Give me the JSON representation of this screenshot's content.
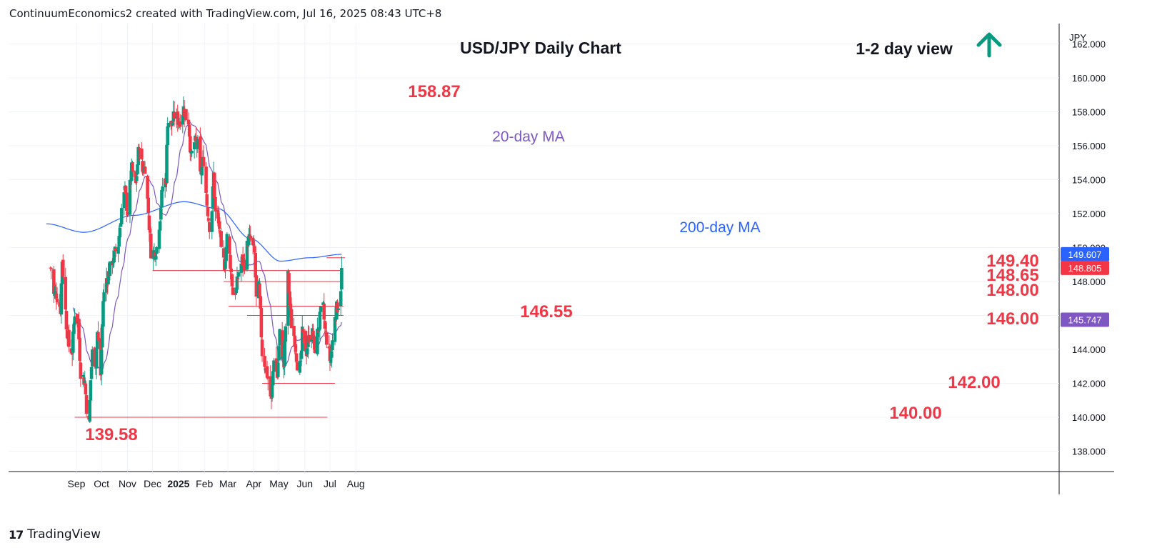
{
  "header": {
    "attribution": "ContinuumEconomics2 created with TradingView.com, Jul 16, 2025 08:43 UTC+8"
  },
  "footer": {
    "brand": "TradingView",
    "brand_mark": "17"
  },
  "chart_data": {
    "type": "candlestick",
    "title": "USD/JPY Daily Chart",
    "subtitle": "1-2 day view",
    "view_direction": "up",
    "currency_label": "JPY",
    "ylim": [
      136.8,
      163.2
    ],
    "y_ticks": [
      138,
      140,
      142,
      144,
      146,
      148,
      150,
      152,
      154,
      156,
      158,
      160,
      162
    ],
    "x_ticks": [
      "Sep",
      "Oct",
      "Nov",
      "Dec",
      "2025",
      "Feb",
      "Mar",
      "Apr",
      "May",
      "Jun",
      "Jul",
      "Aug"
    ],
    "colors": {
      "up": "#089981",
      "down": "#f23645",
      "ma20": "#7e57c2",
      "ma200": "#2962ff",
      "levels": "#f23645",
      "arrow": "#089981"
    },
    "ma_labels": {
      "ma20": "20-day MA",
      "ma200": "200-day MA"
    },
    "last_price": "148.805",
    "last_price_color": "#f23645",
    "ma200_last": "149.607",
    "ma20_last": "145.747",
    "levels": [
      {
        "label": "158.87",
        "value": 158.87
      },
      {
        "label": "149.40",
        "value": 149.4
      },
      {
        "label": "148.65",
        "value": 148.65
      },
      {
        "label": "148.00",
        "value": 148.0
      },
      {
        "label": "146.55",
        "value": 146.55
      },
      {
        "label": "146.00",
        "value": 146.0
      },
      {
        "label": "142.00",
        "value": 142.0
      },
      {
        "label": "140.00",
        "value": 140.0
      },
      {
        "label": "139.58",
        "value": 139.58
      }
    ],
    "anchors": [
      [
        "Aug 5",
        147.2
      ],
      [
        "Aug 8",
        147.3
      ],
      [
        "Aug 13",
        146.4
      ],
      [
        "Aug 15",
        149.3
      ],
      [
        "Aug 20",
        145.5
      ],
      [
        "Aug 23",
        144.2
      ],
      [
        "Aug 27",
        143.9
      ],
      [
        "Aug 30",
        146.2
      ],
      [
        "Sep 3",
        145.6
      ],
      [
        "Sep 6",
        142.7
      ],
      [
        "Sep 11",
        142.1
      ],
      [
        "Sep 13",
        140.6
      ],
      [
        "Sep 16",
        139.6
      ],
      [
        "Sep 18",
        142.2
      ],
      [
        "Sep 20",
        143.8
      ],
      [
        "Sep 24",
        143.2
      ],
      [
        "Sep 26",
        145.0
      ],
      [
        "Sep 30",
        142.5
      ],
      [
        "Oct 3",
        146.9
      ],
      [
        "Oct 7",
        148.2
      ],
      [
        "Oct 10",
        148.6
      ],
      [
        "Oct 15",
        149.4
      ],
      [
        "Oct 21",
        150.2
      ],
      [
        "Oct 25",
        152.3
      ],
      [
        "Oct 29",
        153.3
      ],
      [
        "Nov 1",
        152.1
      ],
      [
        "Nov 6",
        154.6
      ],
      [
        "Nov 11",
        153.7
      ],
      [
        "Nov 15",
        156.2
      ],
      [
        "Nov 19",
        154.5
      ],
      [
        "Nov 22",
        154.8
      ],
      [
        "Nov 26",
        152.1
      ],
      [
        "Nov 29",
        149.8
      ],
      [
        "Dec 3",
        149.7
      ],
      [
        "Dec 6",
        150.0
      ],
      [
        "Dec 10",
        151.9
      ],
      [
        "Dec 13",
        153.6
      ],
      [
        "Dec 17",
        154.1
      ],
      [
        "Dec 19",
        157.5
      ],
      [
        "Dec 24",
        157.2
      ],
      [
        "Dec 27",
        157.8
      ],
      [
        "Jan 2",
        157.4
      ],
      [
        "Jan 7",
        158.2
      ],
      [
        "Jan 10",
        157.7
      ],
      [
        "Jan 13",
        157.5
      ],
      [
        "Jan 16",
        155.3
      ],
      [
        "Jan 20",
        156.2
      ],
      [
        "Jan 24",
        156.0
      ],
      [
        "Jan 27",
        154.2
      ],
      [
        "Jan 31",
        155.2
      ],
      [
        "Feb 4",
        152.6
      ],
      [
        "Feb 7",
        151.3
      ],
      [
        "Feb 10",
        152.3
      ],
      [
        "Feb 12",
        154.3
      ],
      [
        "Feb 14",
        152.0
      ],
      [
        "Feb 19",
        151.2
      ],
      [
        "Feb 21",
        149.6
      ],
      [
        "Feb 25",
        149.0
      ],
      [
        "Feb 28",
        150.6
      ],
      [
        "Mar 4",
        149.1
      ],
      [
        "Mar 7",
        147.3
      ],
      [
        "Mar 11",
        147.5
      ],
      [
        "Mar 14",
        148.6
      ],
      [
        "Mar 18",
        149.2
      ],
      [
        "Mar 21",
        149.1
      ],
      [
        "Mar 25",
        150.4
      ],
      [
        "Mar 28",
        150.5
      ],
      [
        "Apr 2",
        149.6
      ],
      [
        "Apr 4",
        146.9
      ],
      [
        "Apr 7",
        147.6
      ],
      [
        "Apr 9",
        146.0
      ],
      [
        "Apr 11",
        143.8
      ],
      [
        "Apr 15",
        143.0
      ],
      [
        "Apr 18",
        142.3
      ],
      [
        "Apr 22",
        140.9
      ],
      [
        "Apr 25",
        143.6
      ],
      [
        "Apr 29",
        142.4
      ],
      [
        "May 2",
        144.9
      ],
      [
        "May 7",
        143.0
      ],
      [
        "May 9",
        145.4
      ],
      [
        "May 12",
        148.3
      ],
      [
        "May 14",
        146.6
      ],
      [
        "May 16",
        145.5
      ],
      [
        "May 20",
        144.6
      ],
      [
        "May 23",
        143.2
      ],
      [
        "May 27",
        142.9
      ],
      [
        "May 29",
        144.9
      ],
      [
        "Jun 3",
        143.9
      ],
      [
        "Jun 6",
        144.8
      ],
      [
        "Jun 10",
        144.9
      ],
      [
        "Jun 13",
        144.1
      ],
      [
        "Jun 17",
        145.2
      ],
      [
        "Jun 20",
        146.1
      ],
      [
        "Jun 23",
        146.4
      ],
      [
        "Jun 25",
        145.1
      ],
      [
        "Jun 27",
        144.6
      ],
      [
        "Jul 1",
        143.4
      ],
      [
        "Jul 3",
        143.9
      ],
      [
        "Jul 7",
        146.1
      ],
      [
        "Jul 9",
        146.4
      ],
      [
        "Jul 11",
        146.7
      ],
      [
        "Jul 14",
        147.7
      ],
      [
        "Jul 15",
        148.8
      ]
    ]
  }
}
